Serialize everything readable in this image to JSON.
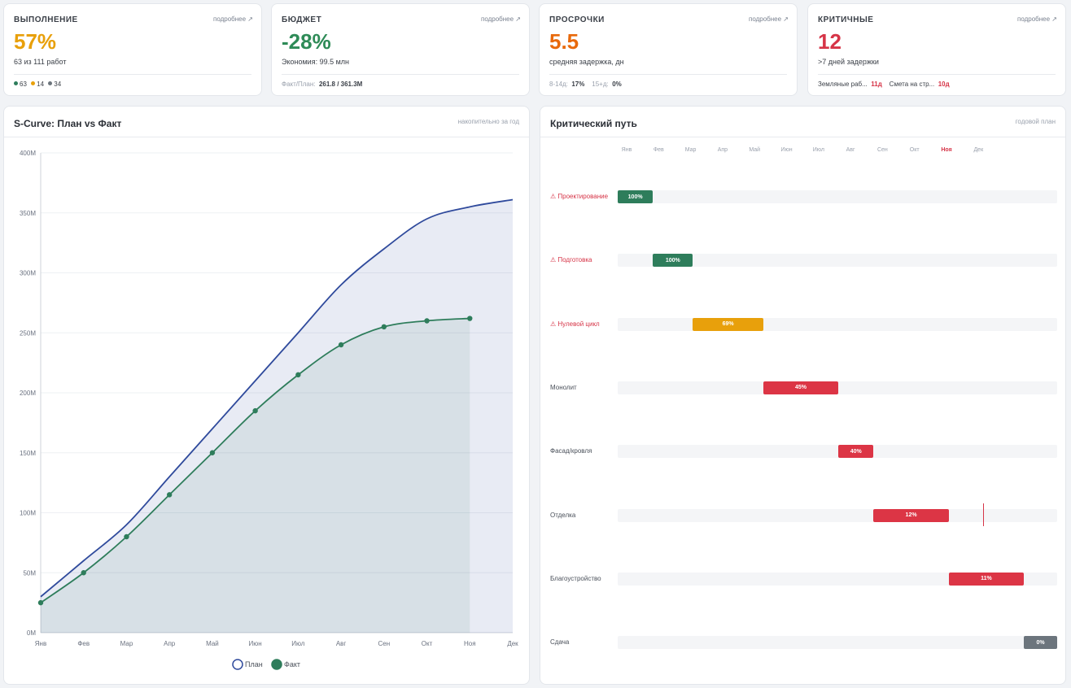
{
  "kpis": {
    "execution": {
      "title": "ВЫПОЛНЕНИЕ",
      "more": "подробнее ↗",
      "value": "57%",
      "value_color": "#e8a00b",
      "sub": "63 из 111 работ",
      "done": "63",
      "in_progress": "14",
      "not_started": "34"
    },
    "budget": {
      "title": "БЮДЖЕТ",
      "more": "подробнее ↗",
      "value": "-28%",
      "value_color": "#2e8b57",
      "sub": "Экономия: 99.5 млн",
      "foot_label": "Факт/План:",
      "foot_value": "261.8 / 361.3M"
    },
    "delays": {
      "title": "ПРОСРОЧКИ",
      "more": "подробнее ↗",
      "value": "5.5",
      "value_color": "#e8690b",
      "sub": "средняя задержка, дн",
      "r1_label": "8-14д:",
      "r1_value": "17%",
      "r2_label": "15+д:",
      "r2_value": "0%"
    },
    "critical": {
      "title": "КРИТИЧНЫЕ",
      "more": "подробнее ↗",
      "value": "12",
      "value_color": "#d63447",
      "sub": ">7 дней задержки",
      "i1_label": "Земляные раб...",
      "i1_value": "11д",
      "i2_label": "Смета на стр...",
      "i2_value": "10д"
    }
  },
  "scurve": {
    "title": "S-Curve: План vs Факт",
    "note": "накопительно за год",
    "legend_plan": "План",
    "legend_fact": "Факт",
    "plan_color": "#2f4a9c",
    "fact_color": "#2e7d5b"
  },
  "chart_data": {
    "type": "line",
    "categories": [
      "Янв",
      "Фев",
      "Мар",
      "Апр",
      "Май",
      "Июн",
      "Июл",
      "Авг",
      "Сен",
      "Окт",
      "Ноя",
      "Дек"
    ],
    "y_ticks": [
      "0M",
      "50M",
      "100M",
      "150M",
      "200M",
      "250M",
      "300M",
      "350M",
      "400M"
    ],
    "ylim": [
      0,
      400
    ],
    "series": [
      {
        "name": "План",
        "values": [
          30,
          60,
          90,
          130,
          170,
          210,
          250,
          290,
          320,
          345,
          355,
          361
        ]
      },
      {
        "name": "Факт",
        "values": [
          25,
          50,
          80,
          115,
          150,
          185,
          215,
          240,
          255,
          260,
          262,
          null
        ]
      }
    ]
  },
  "critical_path": {
    "title": "Критический путь",
    "note": "годовой план",
    "months": [
      "Янв",
      "Фев",
      "Мар",
      "Апр",
      "Май",
      "Июн",
      "Июл",
      "Авг",
      "Сен",
      "Окт",
      "Ноя",
      "Дек"
    ],
    "current_month": "Ноя",
    "tasks": [
      {
        "label": "Проектирование",
        "critical": true,
        "start_month": 0,
        "end_month": 1.1,
        "percent": "100%",
        "color": "#2e7d5b"
      },
      {
        "label": "Подготовка",
        "critical": true,
        "start_month": 1.1,
        "end_month": 2.35,
        "percent": "100%",
        "color": "#2e7d5b"
      },
      {
        "label": "Нулевой цикл",
        "critical": true,
        "start_month": 2.35,
        "end_month": 4.55,
        "percent": "69%",
        "color": "#e8a00b"
      },
      {
        "label": "Монолит",
        "critical": false,
        "start_month": 4.55,
        "end_month": 6.9,
        "percent": "45%",
        "color": "#dc3545"
      },
      {
        "label": "Фасад/кровля",
        "critical": false,
        "start_month": 6.9,
        "end_month": 8.0,
        "percent": "40%",
        "color": "#dc3545"
      },
      {
        "label": "Отделка",
        "critical": false,
        "start_month": 8.0,
        "end_month": 10.35,
        "percent": "12%",
        "color": "#dc3545"
      },
      {
        "label": "Благоустройство",
        "critical": false,
        "start_month": 10.35,
        "end_month": 12.7,
        "percent": "11%",
        "color": "#dc3545"
      },
      {
        "label": "Сдача",
        "critical": false,
        "start_month": 12.7,
        "end_month": 13.8,
        "percent": "0%",
        "color": "#6c757d"
      }
    ]
  },
  "icons": {
    "warning": "⚠"
  }
}
